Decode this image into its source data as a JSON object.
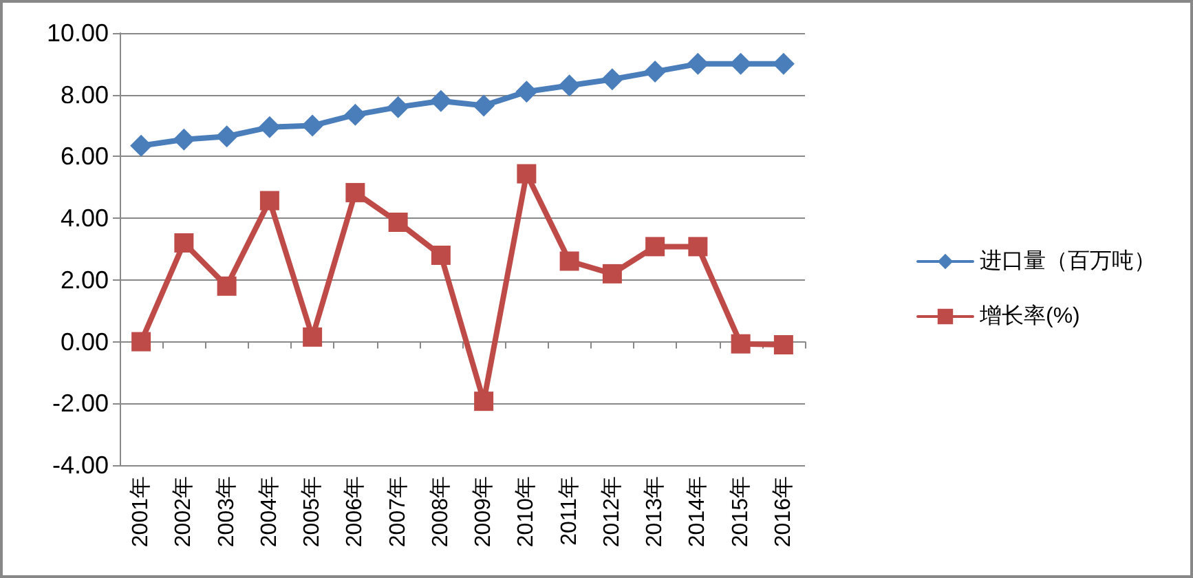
{
  "chart_data": {
    "type": "line",
    "categories": [
      "2001年",
      "2002年",
      "2003年",
      "2004年",
      "2005年",
      "2006年",
      "2007年",
      "2008年",
      "2009年",
      "2010年",
      "2011年",
      "2012年",
      "2013年",
      "2014年",
      "2015年",
      "2016年"
    ],
    "series": [
      {
        "name": "进口量（百万吨）",
        "color": "#4a7ebb",
        "marker": "diamond",
        "values": [
          6.35,
          6.55,
          6.65,
          6.95,
          7.0,
          7.35,
          7.6,
          7.8,
          7.65,
          8.1,
          8.3,
          8.5,
          8.75,
          9.0,
          9.0,
          9.0
        ]
      },
      {
        "name": "增长率(%)",
        "color": "#be4b48",
        "marker": "square",
        "values": [
          0.0,
          3.2,
          1.8,
          4.57,
          0.15,
          4.83,
          3.87,
          2.8,
          -1.93,
          5.44,
          2.61,
          2.2,
          3.08,
          3.08,
          -0.07,
          -0.1
        ]
      }
    ],
    "ylim": [
      -4,
      10
    ],
    "yticks": [
      {
        "value": -4,
        "label": "-4.00"
      },
      {
        "value": -2,
        "label": "-2.00"
      },
      {
        "value": 0,
        "label": "0.00"
      },
      {
        "value": 2,
        "label": "2.00"
      },
      {
        "value": 4,
        "label": "4.00"
      },
      {
        "value": 6,
        "label": "6.00"
      },
      {
        "value": 8,
        "label": "8.00"
      },
      {
        "value": 10,
        "label": "10.00"
      }
    ],
    "grid": "y",
    "legend": "right",
    "line_style": "solid"
  }
}
